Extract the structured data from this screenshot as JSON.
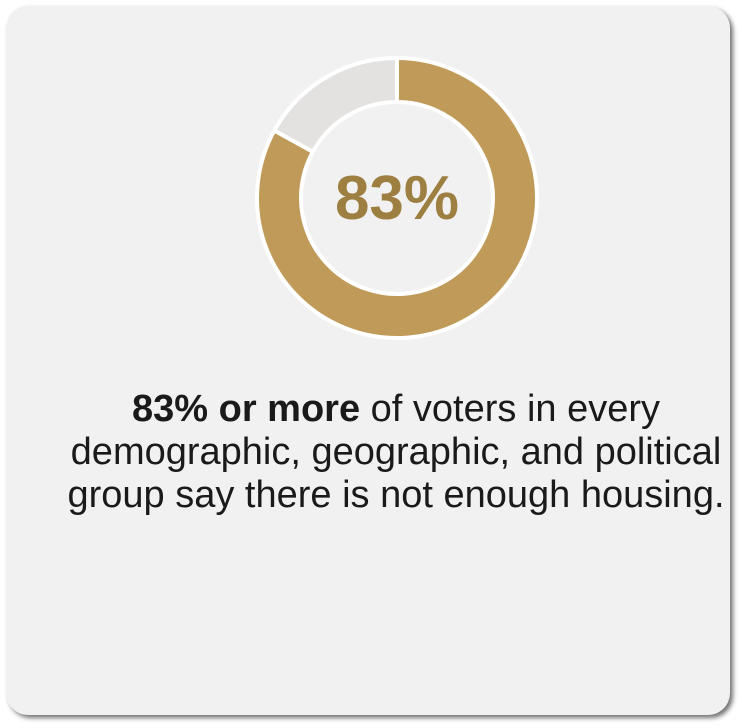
{
  "chart_data": {
    "type": "pie",
    "donut": true,
    "center_label": "83%",
    "values": [
      83,
      17
    ],
    "colors": [
      "#c09a58",
      "#e4e2e1"
    ],
    "start": "top",
    "direction": "clockwise"
  },
  "caption": {
    "lead": "83% or more",
    "rest": " of voters in every demographic, geographic, and political group say there is not enough housing."
  },
  "colors": {
    "card_bg": "#f2f1f1",
    "accent": "#c09a58",
    "accent_text": "#9d7f41",
    "remainder": "#e4e2e1"
  }
}
